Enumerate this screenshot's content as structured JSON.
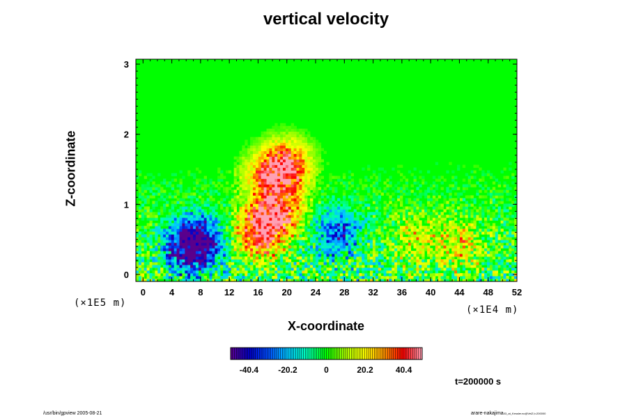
{
  "chart_data": {
    "type": "heatmap",
    "title": "vertical velocity",
    "xlabel": "X-coordinate",
    "ylabel": "Z-coordinate",
    "x_scale_label": "(×1E4 m)",
    "y_scale_label": "(×1E5 m)",
    "x_ticks": [
      "0",
      "4",
      "8",
      "12",
      "16",
      "20",
      "24",
      "28",
      "32",
      "36",
      "40",
      "44",
      "48",
      "52"
    ],
    "y_ticks": [
      "0",
      "1",
      "2",
      "3"
    ],
    "xlim": [
      -1,
      52
    ],
    "ylim": [
      -0.1,
      3.07
    ],
    "colorbar": {
      "ticks": [
        "-40.4",
        "-20.2",
        "0",
        "20.2",
        "40.4"
      ],
      "range": [
        -50,
        50
      ]
    },
    "description_values": {
      "background_value": 0,
      "features": [
        {
          "x": 16,
          "z": 0.6,
          "value": 45
        },
        {
          "x": 19,
          "z": 0.9,
          "value": 40
        },
        {
          "x": 20,
          "z": 1.55,
          "value": 45
        },
        {
          "x": 17,
          "z": 1.4,
          "value": 25
        },
        {
          "x": 8,
          "z": 0.45,
          "value": -42
        },
        {
          "x": 6,
          "z": 0.4,
          "value": -35
        },
        {
          "x": 27,
          "z": 0.6,
          "value": -30
        },
        {
          "x": 38,
          "z": 0.5,
          "value": 15
        },
        {
          "x": 44,
          "z": 0.45,
          "value": 18
        }
      ]
    }
  },
  "annotation": {
    "time": "t=200000 s"
  },
  "footer": {
    "left": "/usr/bin/gpview 2005-08-21",
    "right": "arare-nakajima",
    "right_small": "03_at_Kessler.nc@VelZ,t=200000"
  },
  "colors": {
    "zero": "#00ff00",
    "positive_max": "#ff0000",
    "negative_max": "#0000c8"
  }
}
